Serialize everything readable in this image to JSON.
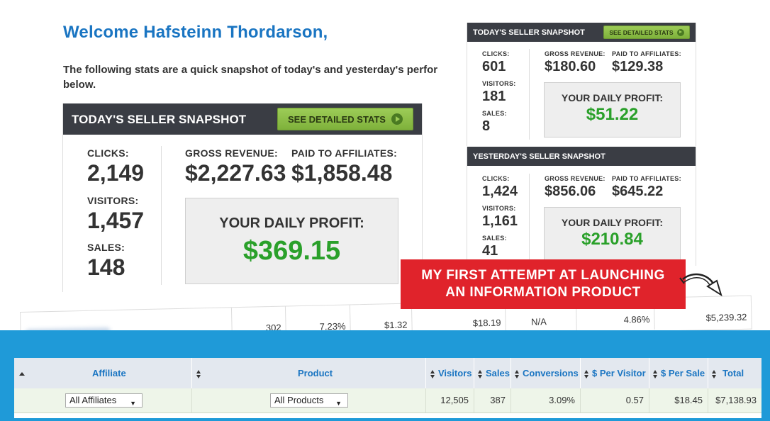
{
  "welcome": {
    "title": "Welcome Hafsteinn Thordarson,",
    "intro": "The following stats are a quick snapshot of today's and yesterday's perfor below."
  },
  "today_big": {
    "title": "TODAY'S SELLER SNAPSHOT",
    "button_label": "SEE DETAILED STATS",
    "clicks_label": "CLICKS:",
    "clicks": "2,149",
    "visitors_label": "VISITORS:",
    "visitors": "1,457",
    "sales_label": "SALES:",
    "sales": "148",
    "gross_label": "GROSS REVENUE:",
    "gross": "$2,227.63",
    "paid_label": "PAID TO AFFILIATES:",
    "paid": "$1,858.48",
    "profit_label": "YOUR DAILY PROFIT:",
    "profit": "$369.15"
  },
  "today_small": {
    "title": "TODAY'S SELLER SNAPSHOT",
    "button_label": "SEE DETAILED STATS",
    "clicks_label": "CLICKS:",
    "clicks": "601",
    "visitors_label": "VISITORS:",
    "visitors": "181",
    "sales_label": "SALES:",
    "sales": "8",
    "gross_label": "GROSS REVENUE:",
    "gross": "$180.60",
    "paid_label": "PAID TO AFFILIATES:",
    "paid": "$129.38",
    "profit_label": "YOUR DAILY PROFIT:",
    "profit": "$51.22"
  },
  "yesterday_small": {
    "title": "YESTERDAY'S SELLER SNAPSHOT",
    "clicks_label": "CLICKS:",
    "clicks": "1,424",
    "visitors_label": "VISITORS:",
    "visitors": "1,161",
    "sales_label": "SALES:",
    "sales": "41",
    "gross_label": "GROSS REVENUE:",
    "gross": "$856.06",
    "paid_label": "PAID TO AFFILIATES:",
    "paid": "$645.22",
    "profit_label": "YOUR DAILY PROFIT:",
    "profit": "$210.84"
  },
  "callout": {
    "line1": "MY FIRST ATTEMPT AT LAUNCHING",
    "line2": "AN INFORMATION PRODUCT"
  },
  "affiliate_row": {
    "visitors": "302",
    "conversions": "7.23%",
    "per_visitor": "$1.32",
    "per_sale": "$18.19",
    "col5": "N/A",
    "col6": "4.86%",
    "total": "$5,239.32"
  },
  "report": {
    "headers": {
      "affiliate": "Affiliate",
      "product": "Product",
      "visitors": "Visitors",
      "sales": "Sales",
      "conversions": "Conversions",
      "per_visitor": "$ Per Visitor",
      "per_sale": "$ Per Sale",
      "total": "Total"
    },
    "filters": {
      "affiliate_selected": "All Affiliates",
      "product_selected": "All Products"
    },
    "totals": {
      "visitors": "12,505",
      "sales": "387",
      "conversions": "3.09%",
      "per_visitor": "0.57",
      "per_sale": "$18.45",
      "total": "$7,138.93"
    }
  },
  "colors": {
    "welcome_blue": "#1a75c2",
    "header_dark": "#3a3d44",
    "button_green": "#8dbf47",
    "profit_green": "#2aa02a",
    "callout_red": "#e0232b",
    "background_blue": "#1f9ad8"
  }
}
